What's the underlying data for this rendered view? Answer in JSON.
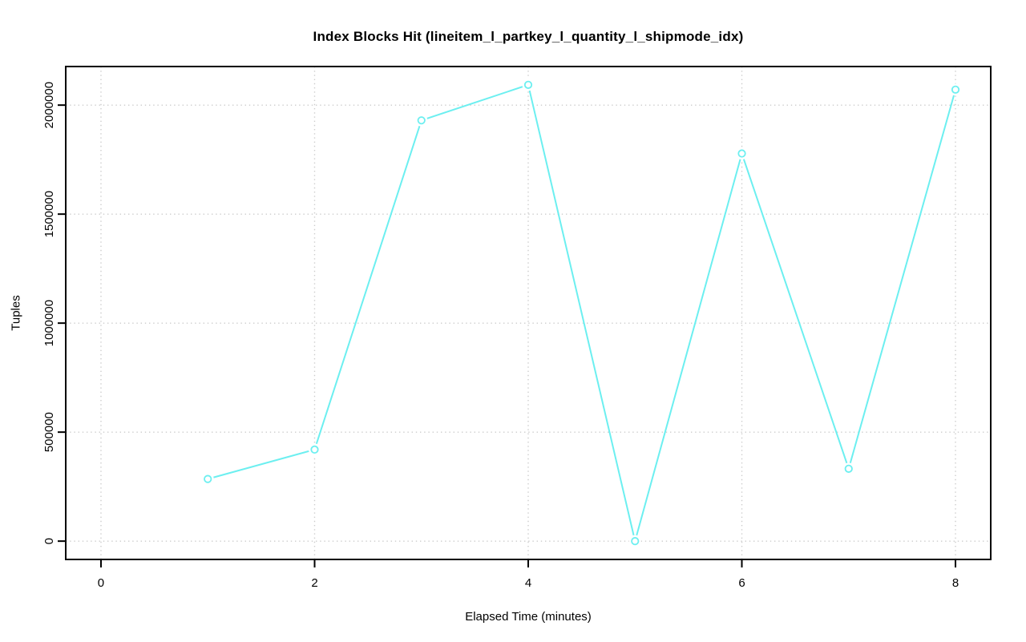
{
  "window": {
    "background": "#ffffff"
  },
  "chart_data": {
    "type": "line",
    "title": "Index Blocks Hit (lineitem_l_partkey_l_quantity_l_shipmode_idx)",
    "xlabel": "Elapsed Time (minutes)",
    "ylabel": "Tuples",
    "x": [
      1,
      2,
      3,
      4,
      5,
      6,
      7,
      8
    ],
    "values": [
      285000,
      420000,
      1930000,
      2093000,
      0,
      1778000,
      332000,
      2071000
    ],
    "xticks": [
      0,
      2,
      4,
      6,
      8
    ],
    "yticks": [
      0,
      500000,
      1000000,
      1500000,
      2000000
    ],
    "xlim": [
      -0.33,
      8.33
    ],
    "ylim": [
      -84000,
      2177000
    ],
    "grid": true,
    "grid_style": "dotted",
    "legend": "none",
    "marker": "open-circle",
    "colors": {
      "line": "#6ceff0",
      "grid": "#cccccc",
      "axis": "#000000",
      "text": "#000000",
      "background": "#ffffff"
    }
  }
}
